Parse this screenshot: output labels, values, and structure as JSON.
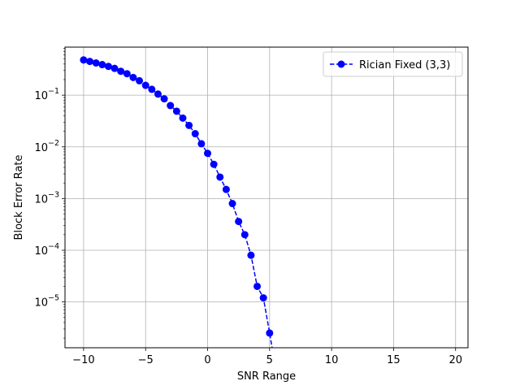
{
  "chart_data": {
    "type": "line",
    "xlabel": "SNR Range",
    "ylabel": "Block Error Rate",
    "yscale": "log",
    "grid": true,
    "legend_position": "top-right",
    "xlim": [
      -11.5,
      21
    ],
    "ylim": [
      1.3e-06,
      0.85
    ],
    "x_ticks": [
      -10,
      -5,
      0,
      5,
      10,
      15,
      20
    ],
    "x_tick_labels": [
      "−10",
      "−5",
      "0",
      "5",
      "10",
      "15",
      "20"
    ],
    "y_ticks": [
      {
        "value": 0.1,
        "base": "10",
        "exp": "−1"
      },
      {
        "value": 0.01,
        "base": "10",
        "exp": "−2"
      },
      {
        "value": 0.001,
        "base": "10",
        "exp": "−3"
      },
      {
        "value": 0.0001,
        "base": "10",
        "exp": "−4"
      },
      {
        "value": 1e-05,
        "base": "10",
        "exp": "−5"
      }
    ],
    "series": [
      {
        "name": "Rician Fixed (3,3)",
        "color": "#0000ff",
        "linestyle": "dashed",
        "marker": "circle",
        "x": [
          -10,
          -9.5,
          -9,
          -8.5,
          -8,
          -7.5,
          -7,
          -6.5,
          -6,
          -5.5,
          -5,
          -4.5,
          -4,
          -3.5,
          -3,
          -2.5,
          -2,
          -1.5,
          -1,
          -0.5,
          0,
          0.5,
          1,
          1.5,
          2,
          2.5,
          3,
          3.5,
          4,
          4.5,
          5,
          5.5
        ],
        "y": [
          0.48,
          0.45,
          0.42,
          0.39,
          0.36,
          0.33,
          0.29,
          0.26,
          0.22,
          0.19,
          0.155,
          0.13,
          0.105,
          0.085,
          0.063,
          0.049,
          0.036,
          0.026,
          0.018,
          0.0115,
          0.0075,
          0.0046,
          0.0026,
          0.0015,
          0.0008,
          0.00036,
          0.0002,
          8e-05,
          2e-05,
          1.2e-05,
          2.5e-06,
          5e-07
        ]
      }
    ]
  }
}
